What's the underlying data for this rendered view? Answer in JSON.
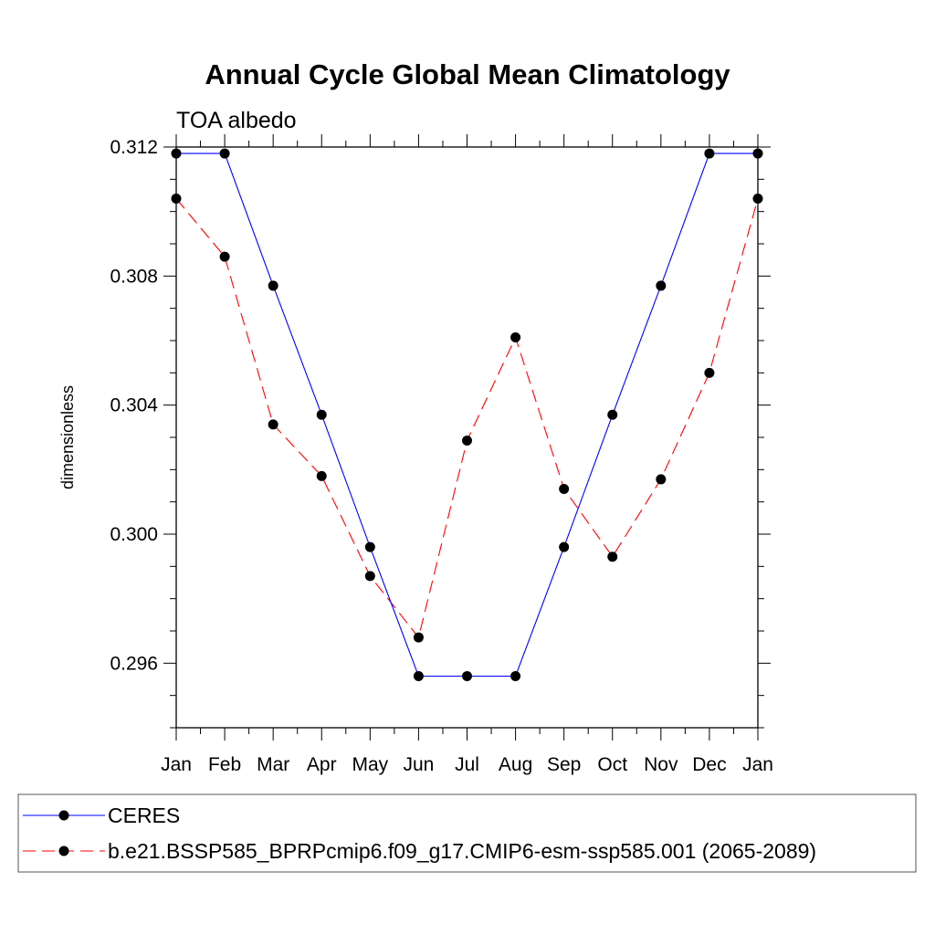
{
  "chart_data": {
    "type": "line",
    "title": "Annual Cycle Global Mean Climatology",
    "subtitle": "TOA albedo",
    "xlabel": "",
    "ylabel": "dimensionless",
    "categories": [
      "Jan",
      "Feb",
      "Mar",
      "Apr",
      "May",
      "Jun",
      "Jul",
      "Aug",
      "Sep",
      "Oct",
      "Nov",
      "Dec",
      "Jan"
    ],
    "ylim": [
      0.294,
      0.312
    ],
    "yticks": [
      0.296,
      0.3,
      0.304,
      0.308,
      0.312
    ],
    "ytick_labels": [
      "0.296",
      "0.300",
      "0.304",
      "0.308",
      "0.312"
    ],
    "grid": false,
    "legend_position": "bottom",
    "series": [
      {
        "name": "CERES",
        "color": "#0000ff",
        "style": "solid",
        "values": [
          0.3118,
          0.3118,
          0.3077,
          0.3037,
          0.2996,
          0.2956,
          0.2956,
          0.2956,
          0.2996,
          0.3037,
          0.3077,
          0.3118,
          0.3118
        ]
      },
      {
        "name": "b.e21.BSSP585_BPRPcmip6.f09_g17.CMIP6-esm-ssp585.001 (2065-2089)",
        "color": "#ff0000",
        "style": "dashed",
        "values": [
          0.3104,
          0.3086,
          0.3034,
          0.3018,
          0.2987,
          0.2968,
          0.3029,
          0.3061,
          0.3014,
          0.2993,
          0.3017,
          0.305,
          0.3104
        ]
      }
    ]
  }
}
